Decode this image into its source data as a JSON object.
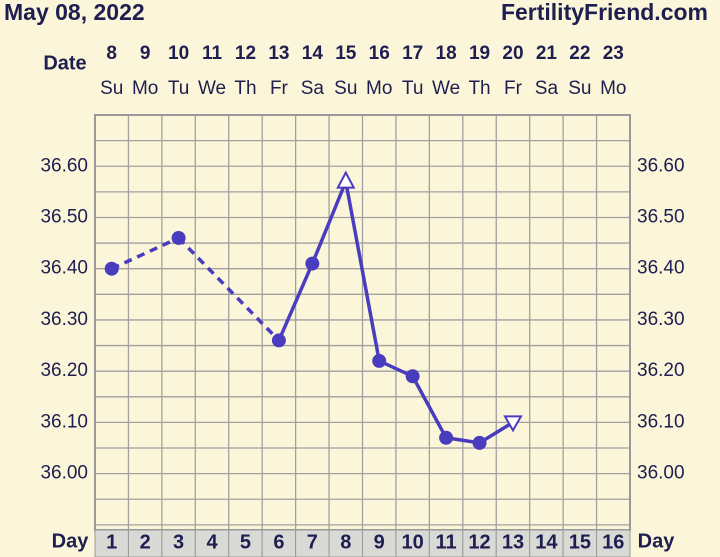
{
  "chart_data": {
    "type": "line",
    "title": "May 08, 2022",
    "site": "FertilityFriend.com",
    "date_label": "Date",
    "day_label": "Day",
    "x": [
      1,
      2,
      3,
      4,
      5,
      6,
      7,
      8,
      9,
      10,
      11,
      12,
      13,
      14,
      15,
      16
    ],
    "dates": [
      8,
      9,
      10,
      11,
      12,
      13,
      14,
      15,
      16,
      17,
      18,
      19,
      20,
      21,
      22,
      23
    ],
    "weekdays": [
      "Su",
      "Mo",
      "Tu",
      "We",
      "Th",
      "Fr",
      "Sa",
      "Su",
      "Mo",
      "Tu",
      "We",
      "Th",
      "Fr",
      "Sa",
      "Su",
      "Mo"
    ],
    "values": [
      36.4,
      null,
      36.46,
      null,
      null,
      36.26,
      36.41,
      36.57,
      36.22,
      36.19,
      36.07,
      36.06,
      36.1,
      null,
      null,
      null
    ],
    "markers": [
      "circle",
      null,
      "circle",
      null,
      null,
      "circle",
      "circle",
      "triangle-up",
      "circle",
      "circle",
      "circle",
      "circle",
      "triangle-down",
      null,
      null,
      null
    ],
    "gaps": "dashed",
    "color": "#4a3cbf",
    "ylim": [
      35.89,
      36.7
    ],
    "yticks": [
      {
        "value": 36.0,
        "label": "36.00"
      },
      {
        "value": 36.1,
        "label": "36.10"
      },
      {
        "value": 36.2,
        "label": "36.20"
      },
      {
        "value": 36.3,
        "label": "36.30"
      },
      {
        "value": 36.4,
        "label": "36.40"
      },
      {
        "value": 36.5,
        "label": "36.50"
      },
      {
        "value": 36.6,
        "label": "36.60"
      }
    ],
    "grid": true
  }
}
